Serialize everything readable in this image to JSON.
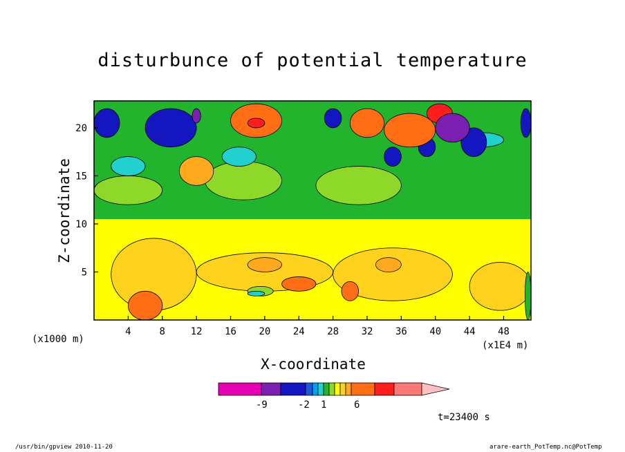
{
  "chart_data": {
    "type": "heatmap",
    "title": "disturbunce of potential temperature",
    "xlabel": "X-coordinate",
    "ylabel": "Z-coordinate",
    "x_unit_left": "(x1000 m)",
    "x_unit_right": "(x1E4 m)",
    "xlim": [
      0,
      51.2
    ],
    "ylim": [
      0,
      22.8
    ],
    "x_ticks": [
      4,
      8,
      12,
      16,
      20,
      24,
      28,
      32,
      36,
      40,
      44,
      48
    ],
    "y_ticks": [
      5,
      10,
      15,
      20
    ],
    "colorbar": {
      "colors": [
        "#e600b4",
        "#7a1fb0",
        "#1416c0",
        "#1e5ad8",
        "#00a0f0",
        "#22d0d0",
        "#21b42c",
        "#8ed82a",
        "#ffff00",
        "#ffd21e",
        "#ffaa1e",
        "#ff6e14",
        "#ff1e1e",
        "#ff7878",
        "#ffc0c0"
      ],
      "labels": [
        {
          "value": "-9",
          "after_index": 1
        },
        {
          "value": "-2",
          "after_index": 4
        },
        {
          "value": "1",
          "after_index": 7
        },
        {
          "value": "6",
          "after_index": 11
        }
      ]
    },
    "regions": [
      {
        "level": 8,
        "x": [
          0,
          51.2
        ],
        "z": [
          0,
          22.8
        ]
      },
      {
        "level": 6,
        "x": [
          0,
          51.2
        ],
        "z": [
          10.5,
          22.8
        ]
      },
      {
        "level": 7,
        "x": [
          13,
          22
        ],
        "z": [
          12.5,
          16.5
        ]
      },
      {
        "level": 7,
        "x": [
          26,
          36
        ],
        "z": [
          12,
          16
        ]
      },
      {
        "level": 7,
        "x": [
          0,
          8
        ],
        "z": [
          12,
          15
        ]
      },
      {
        "level": 5,
        "x": [
          2,
          6
        ],
        "z": [
          15,
          17
        ]
      },
      {
        "level": 5,
        "x": [
          15,
          19
        ],
        "z": [
          16,
          18
        ]
      },
      {
        "level": 5,
        "x": [
          43,
          48
        ],
        "z": [
          18,
          19.5
        ]
      },
      {
        "level": 2,
        "x": [
          0,
          3
        ],
        "z": [
          19,
          22
        ]
      },
      {
        "level": 2,
        "x": [
          6,
          12
        ],
        "z": [
          18,
          22
        ]
      },
      {
        "level": 1,
        "x": [
          11.5,
          12.5
        ],
        "z": [
          20.5,
          22
        ]
      },
      {
        "level": 2,
        "x": [
          27,
          29
        ],
        "z": [
          20,
          22
        ]
      },
      {
        "level": 2,
        "x": [
          34,
          36
        ],
        "z": [
          16,
          18
        ]
      },
      {
        "level": 2,
        "x": [
          38,
          40
        ],
        "z": [
          17,
          19
        ]
      },
      {
        "level": 2,
        "x": [
          43,
          46
        ],
        "z": [
          17,
          20
        ]
      },
      {
        "level": 2,
        "x": [
          50,
          51.2
        ],
        "z": [
          19,
          22
        ]
      },
      {
        "level": 11,
        "x": [
          16,
          22
        ],
        "z": [
          19,
          22.5
        ]
      },
      {
        "level": 12,
        "x": [
          18,
          20
        ],
        "z": [
          20,
          21
        ]
      },
      {
        "level": 11,
        "x": [
          30,
          34
        ],
        "z": [
          19,
          22
        ]
      },
      {
        "level": 11,
        "x": [
          34,
          40
        ],
        "z": [
          18,
          21.5
        ]
      },
      {
        "level": 12,
        "x": [
          39,
          42
        ],
        "z": [
          20.5,
          22.5
        ]
      },
      {
        "level": 1,
        "x": [
          40,
          44
        ],
        "z": [
          18.5,
          21.5
        ]
      },
      {
        "level": 10,
        "x": [
          10,
          14
        ],
        "z": [
          14,
          17
        ]
      },
      {
        "level": 9,
        "x": [
          2,
          12
        ],
        "z": [
          1,
          8.5
        ]
      },
      {
        "level": 9,
        "x": [
          12,
          28
        ],
        "z": [
          3,
          7
        ]
      },
      {
        "level": 10,
        "x": [
          18,
          22
        ],
        "z": [
          5,
          6.5
        ]
      },
      {
        "level": 9,
        "x": [
          28,
          42
        ],
        "z": [
          2,
          7.5
        ]
      },
      {
        "level": 10,
        "x": [
          33,
          36
        ],
        "z": [
          5,
          6.5
        ]
      },
      {
        "level": 9,
        "x": [
          44,
          51.2
        ],
        "z": [
          1,
          6
        ]
      },
      {
        "level": 11,
        "x": [
          4,
          8
        ],
        "z": [
          0,
          3
        ]
      },
      {
        "level": 11,
        "x": [
          22,
          26
        ],
        "z": [
          3,
          4.5
        ]
      },
      {
        "level": 7,
        "x": [
          18,
          21
        ],
        "z": [
          2.5,
          3.5
        ]
      },
      {
        "level": 5,
        "x": [
          18,
          20
        ],
        "z": [
          2.5,
          3
        ]
      },
      {
        "level": 11,
        "x": [
          29,
          31
        ],
        "z": [
          2,
          4
        ]
      },
      {
        "level": 6,
        "x": [
          50.5,
          51.2
        ],
        "z": [
          0,
          5
        ]
      }
    ]
  },
  "colorbar_labels": {
    "a": "-9",
    "b": "-2",
    "c": "1",
    "d": "6"
  },
  "time_label": "t=23400 s",
  "footer_left": "/usr/bin/gpview  2010-11-20",
  "footer_right": "arare-earth_PotTemp.nc@PotTemp"
}
